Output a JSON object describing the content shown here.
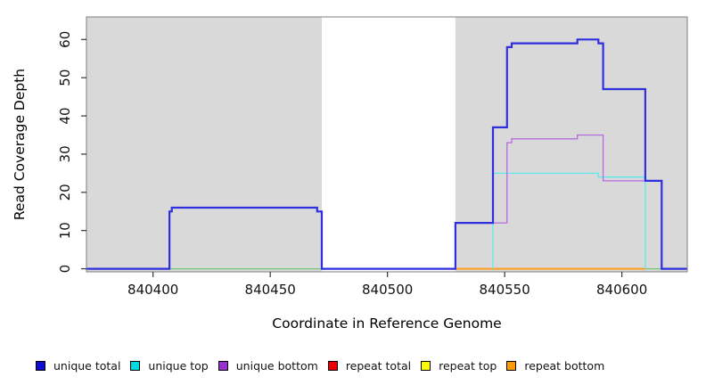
{
  "figure": {
    "background": "#ffffff",
    "plot_background": "#d9d9d9",
    "plot_border_color": "#7d7d7d",
    "tick_color": "#333333"
  },
  "chart_data": {
    "type": "line",
    "subtype": "step",
    "title": "",
    "xlabel": "Coordinate in Reference Genome",
    "ylabel": "Read Coverage Depth",
    "xlim": [
      840371.6,
      840627.9
    ],
    "ylim": [
      -0.8,
      65.9
    ],
    "xticks": [
      840400,
      840450,
      840500,
      840550,
      840600
    ],
    "yticks": [
      0,
      10,
      20,
      30,
      40,
      50,
      60
    ],
    "grid": false,
    "legend_position": "bottom",
    "uncovered_gap": {
      "x0": 840472,
      "x1": 840529,
      "color": "#ffffff"
    },
    "series": [
      {
        "name": "repeat total",
        "color": "#e80202",
        "width": 1.3,
        "steps": [
          [
            840529,
            0
          ]
        ],
        "end": 840610
      },
      {
        "name": "repeat top",
        "color": "#f5ef00",
        "width": 1.3,
        "steps": [
          [
            840529,
            0
          ]
        ],
        "end": 840610
      },
      {
        "name": "unlabeled baseline",
        "color": "#74c776",
        "width": 1.3,
        "steps": [
          [
            840371.6,
            0
          ]
        ],
        "end": 840627.9
      },
      {
        "name": "repeat bottom",
        "color": "#ff9d17",
        "width": 2,
        "steps": [
          [
            840529,
            0
          ]
        ],
        "end": 840610
      },
      {
        "name": "unique top",
        "color": "#5fe9ef",
        "width": 1.3,
        "steps": [
          [
            840545,
            0
          ],
          [
            840545,
            25
          ],
          [
            840590,
            24
          ],
          [
            840610,
            0
          ]
        ],
        "end": 840610
      },
      {
        "name": "unique bottom",
        "color": "#b56ae0",
        "width": 1.3,
        "steps": [
          [
            840529,
            0
          ],
          [
            840529,
            12
          ],
          [
            840551,
            33
          ],
          [
            840553,
            34
          ],
          [
            840581,
            35
          ],
          [
            840592,
            23
          ],
          [
            840617,
            0
          ]
        ],
        "end": 840617
      },
      {
        "name": "unique total",
        "color": "#2f2fe0",
        "width": 2.2,
        "steps": [
          [
            840371.6,
            0
          ],
          [
            840407,
            15
          ],
          [
            840408,
            16
          ],
          [
            840470,
            15
          ],
          [
            840472,
            0
          ],
          [
            840529,
            12
          ],
          [
            840545,
            37
          ],
          [
            840551,
            58
          ],
          [
            840553,
            59
          ],
          [
            840581,
            60
          ],
          [
            840590,
            59
          ],
          [
            840592,
            47
          ],
          [
            840610,
            23
          ],
          [
            840617,
            0
          ]
        ],
        "end": 840627.9
      }
    ]
  },
  "legend": {
    "items": [
      {
        "label": "unique total",
        "color": "#0d0dcf"
      },
      {
        "label": "unique top",
        "color": "#00dbe3"
      },
      {
        "label": "unique bottom",
        "color": "#9932cc"
      },
      {
        "label": "repeat total",
        "color": "#e80202"
      },
      {
        "label": "repeat top",
        "color": "#ffff00"
      },
      {
        "label": "repeat bottom",
        "color": "#ff9d00"
      }
    ]
  }
}
